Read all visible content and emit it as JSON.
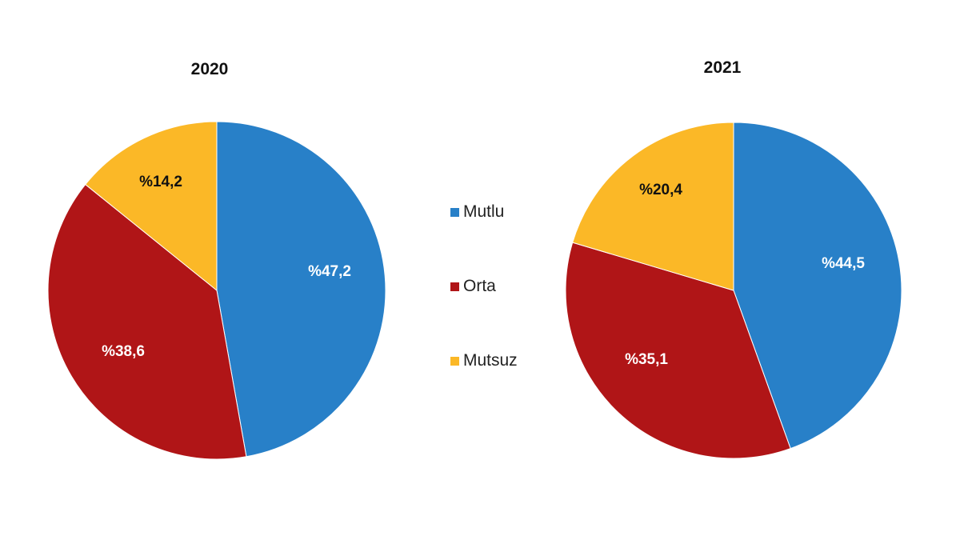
{
  "legend": {
    "items": [
      {
        "label": "Mutlu",
        "color": "#2880C8"
      },
      {
        "label": "Orta",
        "color": "#B01517"
      },
      {
        "label": "Mutsuz",
        "color": "#FBB827"
      }
    ]
  },
  "pies": [
    {
      "title": "2020",
      "labels": [
        "%47,2",
        "%38,6",
        "%14,2"
      ]
    },
    {
      "title": "2021",
      "labels": [
        "%44,5",
        "%35,1",
        "%20,4"
      ]
    }
  ],
  "chart_data": [
    {
      "type": "pie",
      "title": "2020",
      "categories": [
        "Mutlu",
        "Orta",
        "Mutsuz"
      ],
      "values": [
        47.2,
        38.6,
        14.2
      ],
      "colors": [
        "#2880C8",
        "#B01517",
        "#FBB827"
      ],
      "legend_position": "center-between"
    },
    {
      "type": "pie",
      "title": "2021",
      "categories": [
        "Mutlu",
        "Orta",
        "Mutsuz"
      ],
      "values": [
        44.5,
        35.1,
        20.4
      ],
      "colors": [
        "#2880C8",
        "#B01517",
        "#FBB827"
      ],
      "legend_position": "center-between"
    }
  ]
}
